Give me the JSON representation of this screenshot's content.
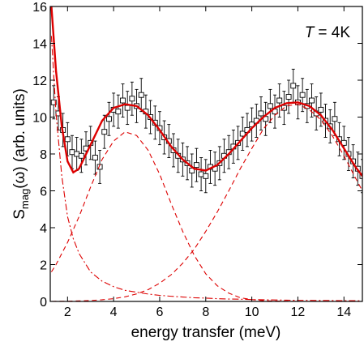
{
  "chart_data": {
    "type": "line",
    "xlabel": "energy transfer (meV)",
    "ylabel": {
      "main": "S",
      "sub": "mag",
      "rest": "(ω) (arb. units)"
    },
    "annotation": {
      "var": "T",
      "rest": "= 4K"
    },
    "xlim": [
      1.25,
      14.8
    ],
    "ylim": [
      0,
      16
    ],
    "xticks": [
      2,
      4,
      6,
      8,
      10,
      12,
      14
    ],
    "yticks": [
      0,
      2,
      4,
      6,
      8,
      10,
      12,
      14,
      16
    ],
    "x": [
      1.3,
      1.5,
      1.75,
      2,
      2.25,
      2.5,
      3,
      3.5,
      4,
      4.5,
      5,
      5.5,
      6,
      6.5,
      7,
      7.5,
      8,
      8.5,
      9,
      9.5,
      10,
      10.5,
      11,
      11.5,
      12,
      12.5,
      13,
      13.5,
      14,
      14.5,
      14.8
    ],
    "series": [
      {
        "type": "scatter",
        "color": "#000000",
        "x": [
          1.4,
          1.6,
          1.8,
          2.0,
          2.2,
          2.4,
          2.6,
          2.8,
          3.0,
          3.2,
          3.4,
          3.6,
          3.8,
          4.0,
          4.2,
          4.4,
          4.6,
          4.8,
          5.0,
          5.2,
          5.4,
          5.6,
          5.8,
          6.0,
          6.2,
          6.4,
          6.6,
          6.8,
          7.0,
          7.2,
          7.4,
          7.6,
          7.8,
          8.0,
          8.2,
          8.4,
          8.6,
          8.8,
          9.0,
          9.2,
          9.4,
          9.6,
          9.8,
          10.0,
          10.2,
          10.4,
          10.6,
          10.8,
          11.0,
          11.2,
          11.4,
          11.6,
          11.8,
          12.0,
          12.2,
          12.4,
          12.6,
          12.8,
          13.0,
          13.2,
          13.4,
          13.6,
          13.8,
          14.0,
          14.2,
          14.4,
          14.6,
          14.8
        ],
        "values": [
          10.8,
          10.2,
          9.3,
          8.8,
          8.1,
          8.0,
          7.9,
          8.3,
          8.6,
          7.8,
          7.3,
          9.2,
          9.9,
          10.4,
          10.3,
          10.9,
          10.5,
          11.0,
          10.6,
          11.2,
          10.3,
          10.0,
          9.7,
          9.4,
          8.9,
          8.7,
          8.2,
          7.9,
          7.7,
          7.5,
          7.1,
          7.4,
          6.9,
          6.8,
          7.3,
          7.2,
          7.5,
          7.9,
          8.1,
          8.4,
          8.6,
          9.1,
          9.3,
          9.6,
          9.8,
          10.2,
          9.9,
          10.6,
          10.3,
          10.9,
          10.5,
          11.1,
          11.7,
          10.8,
          11.2,
          10.6,
          10.9,
          10.2,
          10.4,
          9.8,
          9.5,
          9.9,
          8.8,
          8.6,
          8.0,
          7.6,
          7.2,
          6.8
        ],
        "errors": [
          0.9,
          0.9,
          0.9,
          0.9,
          0.9,
          0.9,
          0.9,
          0.9,
          0.9,
          0.9,
          0.9,
          0.9,
          0.9,
          0.9,
          0.9,
          0.9,
          0.9,
          0.9,
          0.9,
          0.9,
          0.9,
          0.9,
          0.9,
          0.9,
          0.9,
          0.9,
          0.9,
          0.9,
          0.9,
          0.9,
          0.9,
          0.9,
          0.9,
          0.9,
          0.9,
          0.9,
          0.9,
          0.9,
          0.9,
          0.9,
          0.9,
          0.9,
          0.9,
          0.9,
          0.9,
          0.9,
          0.9,
          0.9,
          0.9,
          0.9,
          0.9,
          0.9,
          0.9,
          0.9,
          0.9,
          0.9,
          0.9,
          0.9,
          0.9,
          0.9,
          0.9,
          0.9,
          0.9,
          0.9,
          0.9,
          0.9,
          0.9,
          0.9
        ]
      },
      {
        "type": "line",
        "style": "solid",
        "color": "#dd0000",
        "values": [
          16,
          12.5,
          9.5,
          7.6,
          7.0,
          7.2,
          8.5,
          9.8,
          10.5,
          10.7,
          10.6,
          10.1,
          9.3,
          8.4,
          7.7,
          7.2,
          7.1,
          7.4,
          8.0,
          8.7,
          9.4,
          10.0,
          10.5,
          10.75,
          10.8,
          10.6,
          10.1,
          9.3,
          8.3,
          7.3,
          6.8
        ]
      },
      {
        "type": "line",
        "style": "dashed",
        "color": "#dd0000",
        "values": [
          1.6,
          2.0,
          2.6,
          3.2,
          3.9,
          4.6,
          6.2,
          7.7,
          8.7,
          9.2,
          9.0,
          8.2,
          6.9,
          5.3,
          3.8,
          2.5,
          1.5,
          0.85,
          0.45,
          0.2,
          0.1,
          0.04,
          0.02,
          0.01,
          0,
          0,
          0,
          0,
          0,
          0,
          0
        ]
      },
      {
        "type": "line",
        "style": "dashed",
        "color": "#dd0000",
        "values": [
          0,
          0.01,
          0.01,
          0.01,
          0.02,
          0.03,
          0.05,
          0.09,
          0.15,
          0.25,
          0.41,
          0.64,
          0.99,
          1.45,
          2.07,
          2.83,
          3.8,
          4.85,
          6.0,
          7.2,
          8.3,
          9.35,
          10.1,
          10.6,
          10.7,
          10.4,
          9.85,
          8.98,
          7.9,
          6.7,
          6.0
        ]
      },
      {
        "type": "line",
        "style": "dashdot",
        "color": "#dd0000",
        "values": [
          14.4,
          10.2,
          6.8,
          4.6,
          3.4,
          2.6,
          1.6,
          1.1,
          0.8,
          0.6,
          0.5,
          0.4,
          0.33,
          0.28,
          0.24,
          0.2,
          0.18,
          0.15,
          0.13,
          0.12,
          0.1,
          0.09,
          0.08,
          0.07,
          0.06,
          0.06,
          0.05,
          0.05,
          0.04,
          0.04,
          0.03
        ]
      }
    ]
  }
}
